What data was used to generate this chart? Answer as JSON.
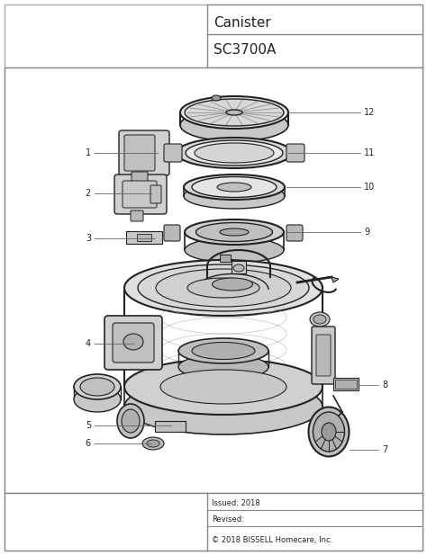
{
  "title1": "Canister",
  "title2": "SC3700A",
  "bg_color": "#ffffff",
  "border_color": "#888888",
  "footer_issued": "Issued: 2018",
  "footer_revised": "Revised:",
  "footer_copy": "© 2018 BISSELL Homecare, Inc.",
  "line_color": "#666666",
  "text_color": "#222222",
  "sc": "#222222",
  "lc": "#666666",
  "label_font": 7.0,
  "lw_line": 0.6
}
